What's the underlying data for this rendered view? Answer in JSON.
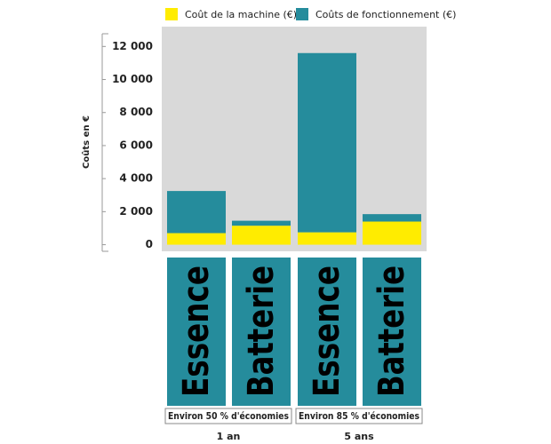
{
  "chart_data": {
    "type": "stacked-bar",
    "y_label": "Coûts en €",
    "categories": [
      "Essence",
      "Batterie",
      "Essence",
      "Batterie"
    ],
    "groups": [
      {
        "label": "1 an",
        "note": "Environ 50 % d'économies"
      },
      {
        "label": "5 ans",
        "note": "Environ 85 % d'économies"
      }
    ],
    "series": [
      {
        "name": "Coût de la machine (€)",
        "color": "#ffec00",
        "values": [
          700,
          1150,
          750,
          1400
        ]
      },
      {
        "name": "Coûts de fonctionnement (€)",
        "color": "#258c9c",
        "values": [
          2550,
          300,
          10850,
          450
        ]
      }
    ],
    "ylim": [
      -400,
      13200
    ],
    "yticks": [
      0,
      {
        "value": 2000,
        "label": "2 000"
      },
      {
        "value": 4000,
        "label": "4 000"
      },
      {
        "value": 6000,
        "label": "6 000"
      },
      {
        "value": 8000,
        "label": "8 000"
      },
      {
        "value": 10000,
        "label": "10 000"
      },
      {
        "value": 12000,
        "label": "12 000"
      }
    ]
  }
}
